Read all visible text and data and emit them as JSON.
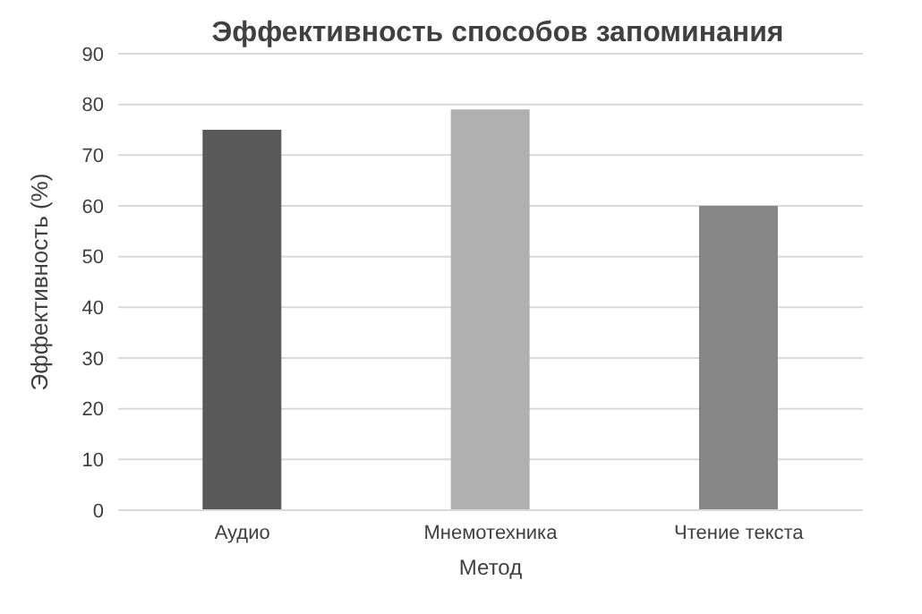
{
  "chart_data": {
    "type": "bar",
    "title": "Эффективность способов запоминания",
    "xlabel": "Метод",
    "ylabel": "Эффективность (%)",
    "categories": [
      "Аудио",
      "Мнемотехника",
      "Чтение текста"
    ],
    "values": [
      75,
      79,
      60
    ],
    "colors": [
      "#595959",
      "#b0b0b0",
      "#868686"
    ],
    "ylim": [
      0,
      90
    ],
    "yticks": [
      0,
      10,
      20,
      30,
      40,
      50,
      60,
      70,
      80,
      90
    ],
    "grid": "y"
  }
}
